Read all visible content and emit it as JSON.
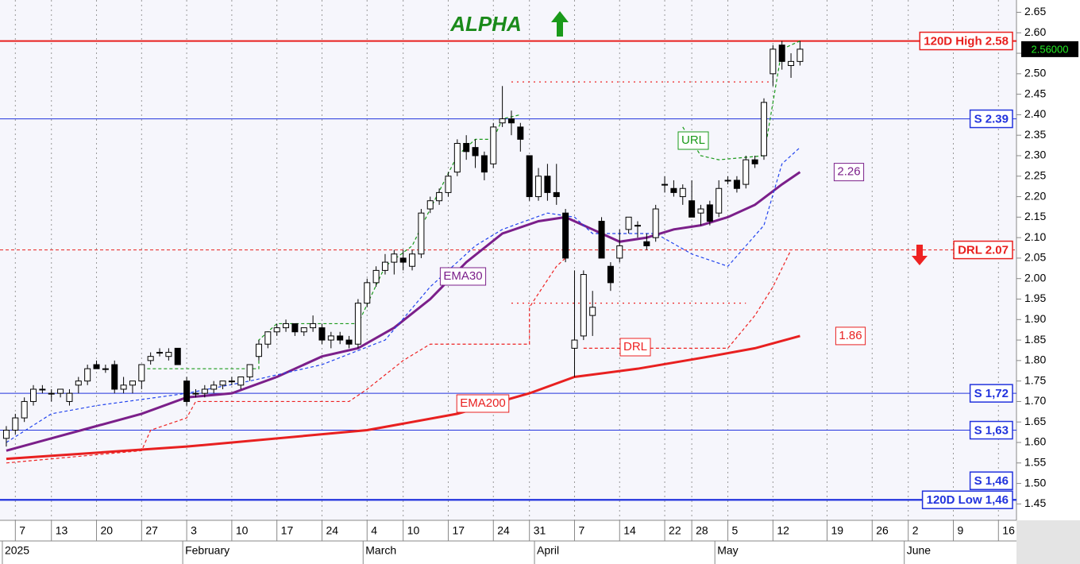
{
  "chart_data": {
    "type": "candlestick",
    "title": "ALPHA",
    "xlim": [
      -0.7,
      112
    ],
    "ylim": [
      1.41,
      2.68
    ],
    "grid": true,
    "xticks": [
      {
        "value": 1,
        "label": "7"
      },
      {
        "value": 5,
        "label": "13"
      },
      {
        "value": 10,
        "label": "20"
      },
      {
        "value": 15,
        "label": "27"
      },
      {
        "value": 20,
        "label": "3"
      },
      {
        "value": 25,
        "label": "10"
      },
      {
        "value": 30,
        "label": "17"
      },
      {
        "value": 35,
        "label": "24"
      },
      {
        "value": 40,
        "label": "4"
      },
      {
        "value": 44,
        "label": "10"
      },
      {
        "value": 49,
        "label": "17"
      },
      {
        "value": 54,
        "label": "24"
      },
      {
        "value": 58,
        "label": "31"
      },
      {
        "value": 63,
        "label": "7"
      },
      {
        "value": 68,
        "label": "14"
      },
      {
        "value": 73,
        "label": "22"
      },
      {
        "value": 76,
        "label": "28"
      },
      {
        "value": 80,
        "label": "5"
      },
      {
        "value": 85,
        "label": "12"
      },
      {
        "value": 91,
        "label": "19"
      },
      {
        "value": 96,
        "label": "26"
      },
      {
        "value": 100,
        "label": "2"
      },
      {
        "value": 105,
        "label": "9"
      },
      {
        "value": 110,
        "label": "16"
      }
    ],
    "month_ticks": [
      {
        "value": 0,
        "label": "2025"
      },
      {
        "value": 20,
        "label": "February"
      },
      {
        "value": 40,
        "label": "March"
      },
      {
        "value": 59,
        "label": "April"
      },
      {
        "value": 79,
        "label": "May"
      },
      {
        "value": 100,
        "label": "June"
      }
    ],
    "yticks": [
      {
        "value": 1.45,
        "label": "1.45"
      },
      {
        "value": 1.5,
        "label": "1.50"
      },
      {
        "value": 1.55,
        "label": "1.55"
      },
      {
        "value": 1.6,
        "label": "1.60"
      },
      {
        "value": 1.65,
        "label": "1.65"
      },
      {
        "value": 1.7,
        "label": "1.70"
      },
      {
        "value": 1.75,
        "label": "1.75"
      },
      {
        "value": 1.8,
        "label": "1.80"
      },
      {
        "value": 1.85,
        "label": "1.85"
      },
      {
        "value": 1.9,
        "label": "1.90"
      },
      {
        "value": 1.95,
        "label": "1.95"
      },
      {
        "value": 2.0,
        "label": "2.00"
      },
      {
        "value": 2.05,
        "label": "2.05"
      },
      {
        "value": 2.1,
        "label": "2.10"
      },
      {
        "value": 2.15,
        "label": "2.15"
      },
      {
        "value": 2.2,
        "label": "2.20"
      },
      {
        "value": 2.25,
        "label": "2.25"
      },
      {
        "value": 2.3,
        "label": "2.30"
      },
      {
        "value": 2.35,
        "label": "2.35"
      },
      {
        "value": 2.4,
        "label": "2.40"
      },
      {
        "value": 2.45,
        "label": "2.45"
      },
      {
        "value": 2.5,
        "label": "2.50"
      },
      {
        "value": 2.55,
        "label": "2.55"
      },
      {
        "value": 2.6,
        "label": "2.60"
      },
      {
        "value": 2.65,
        "label": "2.65"
      }
    ],
    "candles": {
      "open": [
        1.61,
        1.63,
        1.66,
        1.7,
        1.73,
        1.72,
        1.72,
        1.7,
        1.74,
        1.75,
        1.79,
        1.78,
        1.79,
        1.73,
        1.74,
        1.75,
        1.8,
        1.82,
        1.81,
        1.83,
        1.75,
        1.72,
        1.72,
        1.73,
        1.74,
        1.75,
        1.74,
        1.76,
        1.81,
        1.84,
        1.87,
        1.88,
        1.89,
        1.87,
        1.88,
        1.88,
        1.85,
        1.86,
        1.85,
        1.84,
        1.94,
        1.99,
        2.02,
        2.04,
        2.05,
        2.03,
        2.06,
        2.17,
        2.19,
        2.21,
        2.26,
        2.33,
        2.32,
        2.3,
        2.28,
        2.38,
        2.39,
        2.37,
        2.3,
        2.2,
        2.25,
        2.21,
        2.16,
        1.83,
        1.86,
        1.91,
        2.14,
        2.03,
        2.05,
        2.12,
        2.13,
        2.09,
        2.1,
        2.23,
        2.22,
        2.2,
        2.19,
        2.16,
        2.18,
        2.16,
        2.24,
        2.24,
        2.23,
        2.29,
        2.3,
        2.5,
        2.57,
        2.52,
        2.53
      ],
      "high": [
        1.64,
        1.67,
        1.71,
        1.74,
        1.74,
        1.73,
        1.73,
        1.73,
        1.76,
        1.79,
        1.8,
        1.79,
        1.8,
        1.76,
        1.75,
        1.79,
        1.82,
        1.83,
        1.83,
        1.83,
        1.76,
        1.73,
        1.74,
        1.75,
        1.75,
        1.76,
        1.76,
        1.79,
        1.85,
        1.87,
        1.89,
        1.9,
        1.89,
        1.88,
        1.91,
        1.89,
        1.87,
        1.87,
        1.86,
        1.95,
        2.0,
        2.03,
        2.06,
        2.07,
        2.07,
        2.07,
        2.17,
        2.2,
        2.22,
        2.26,
        2.34,
        2.35,
        2.34,
        2.31,
        2.38,
        2.47,
        2.41,
        2.38,
        2.3,
        2.27,
        2.28,
        2.28,
        2.17,
        2.02,
        2.02,
        1.97,
        2.15,
        2.04,
        2.12,
        2.15,
        2.14,
        2.11,
        2.18,
        2.25,
        2.24,
        2.23,
        2.24,
        2.18,
        2.19,
        2.24,
        2.25,
        2.25,
        2.3,
        2.3,
        2.44,
        2.57,
        2.58,
        2.55,
        2.58
      ],
      "low": [
        1.59,
        1.62,
        1.65,
        1.69,
        1.72,
        1.7,
        1.71,
        1.69,
        1.72,
        1.74,
        1.78,
        1.77,
        1.72,
        1.72,
        1.72,
        1.73,
        1.79,
        1.81,
        1.8,
        1.79,
        1.69,
        1.71,
        1.71,
        1.72,
        1.73,
        1.74,
        1.73,
        1.75,
        1.8,
        1.83,
        1.86,
        1.87,
        1.86,
        1.86,
        1.87,
        1.84,
        1.83,
        1.84,
        1.83,
        1.83,
        1.93,
        1.98,
        2.01,
        2.01,
        2.02,
        2.02,
        2.05,
        2.16,
        2.18,
        2.2,
        2.25,
        2.29,
        2.27,
        2.24,
        2.27,
        2.37,
        2.35,
        2.31,
        2.19,
        2.19,
        2.19,
        2.18,
        2.04,
        1.76,
        1.85,
        1.86,
        2.05,
        1.97,
        2.04,
        2.11,
        2.1,
        2.07,
        2.09,
        2.21,
        2.2,
        2.18,
        2.15,
        2.13,
        2.13,
        2.15,
        2.23,
        2.21,
        2.22,
        2.27,
        2.29,
        2.47,
        2.51,
        2.49,
        2.52
      ],
      "close": [
        1.63,
        1.66,
        1.7,
        1.73,
        1.73,
        1.72,
        1.73,
        1.72,
        1.75,
        1.78,
        1.78,
        1.78,
        1.73,
        1.74,
        1.75,
        1.79,
        1.81,
        1.82,
        1.82,
        1.79,
        1.7,
        1.72,
        1.73,
        1.74,
        1.75,
        1.75,
        1.76,
        1.79,
        1.84,
        1.87,
        1.88,
        1.89,
        1.87,
        1.88,
        1.89,
        1.85,
        1.86,
        1.85,
        1.84,
        1.94,
        1.99,
        2.02,
        2.04,
        2.06,
        2.04,
        2.06,
        2.16,
        2.19,
        2.21,
        2.25,
        2.33,
        2.31,
        2.3,
        2.26,
        2.37,
        2.39,
        2.38,
        2.34,
        2.2,
        2.25,
        2.21,
        2.2,
        2.05,
        1.85,
        2.01,
        1.93,
        2.05,
        1.99,
        2.08,
        2.15,
        2.13,
        2.08,
        2.17,
        2.23,
        2.21,
        2.22,
        2.15,
        2.17,
        2.14,
        2.22,
        2.24,
        2.22,
        2.29,
        2.28,
        2.43,
        2.56,
        2.53,
        2.53,
        2.56
      ]
    },
    "series": [
      {
        "name": "EMA30",
        "color": "#7b1f8a",
        "end_label": 2.26,
        "x": [
          0,
          5,
          10,
          15,
          20,
          25,
          30,
          35,
          39,
          43,
          47,
          51,
          55,
          59,
          62,
          65,
          68,
          71,
          74,
          77,
          80,
          83,
          86,
          88
        ],
        "values": [
          1.58,
          1.61,
          1.64,
          1.67,
          1.71,
          1.72,
          1.76,
          1.81,
          1.83,
          1.88,
          1.95,
          2.04,
          2.11,
          2.14,
          2.15,
          2.12,
          2.09,
          2.1,
          2.12,
          2.13,
          2.15,
          2.18,
          2.23,
          2.26
        ]
      },
      {
        "name": "EMA200",
        "color": "#e82020",
        "end_label": 1.86,
        "x": [
          0,
          20,
          40,
          50,
          58,
          63,
          70,
          78,
          83,
          88
        ],
        "values": [
          1.56,
          1.59,
          1.63,
          1.67,
          1.72,
          1.76,
          1.78,
          1.81,
          1.83,
          1.86
        ]
      },
      {
        "color": "#2244ee",
        "x": [
          0,
          5,
          10,
          20,
          27,
          35,
          42,
          47,
          52,
          55,
          60,
          63,
          65,
          72,
          76,
          80,
          84,
          86,
          88
        ],
        "values": [
          1.6,
          1.67,
          1.69,
          1.72,
          1.75,
          1.79,
          1.85,
          1.98,
          2.08,
          2.12,
          2.16,
          2.15,
          2.11,
          2.11,
          2.06,
          2.03,
          2.13,
          2.28,
          2.32
        ]
      },
      {
        "name": "URL",
        "color": "#1a9a1a",
        "x": [
          15,
          28,
          28,
          30,
          39,
          42,
          45,
          47,
          50,
          52,
          54,
          55,
          57,
          66,
          75,
          77,
          79,
          84,
          85,
          86,
          88
        ],
        "values": [
          1.78,
          1.78,
          1.85,
          1.89,
          1.89,
          2.03,
          2.08,
          2.17,
          2.3,
          2.34,
          2.34,
          2.39,
          2.4,
          null,
          2.37,
          2.3,
          2.29,
          2.3,
          2.43,
          2.56,
          2.58
        ]
      },
      {
        "name": "DRL",
        "color": "#ee2222",
        "x": [
          0,
          15,
          16,
          20,
          21,
          38,
          40,
          44,
          47,
          58,
          58,
          61,
          62,
          63,
          64,
          80,
          83,
          85,
          87
        ],
        "values": [
          1.55,
          1.58,
          1.63,
          1.66,
          1.7,
          1.7,
          1.73,
          1.8,
          1.84,
          1.84,
          1.93,
          2.03,
          2.05,
          null,
          1.83,
          1.83,
          1.91,
          1.98,
          2.07
        ]
      },
      {
        "color": "#ee2222",
        "x": [
          56,
          85
        ],
        "values": [
          2.48,
          2.48
        ]
      },
      {
        "color": "#ee2222",
        "x": [
          56,
          82
        ],
        "values": [
          1.94,
          1.94
        ]
      }
    ],
    "levels": [
      {
        "label": "120D High 2.58",
        "value": 2.58,
        "color": "#e8201e",
        "width": 2
      },
      {
        "label": "S 2.39",
        "value": 2.39,
        "color": "#2233dd",
        "width": 1
      },
      {
        "label": "DRL 2.07",
        "value": 2.07,
        "color": "#e8201e",
        "width": 1,
        "dash": true
      },
      {
        "label": "S 1,72",
        "value": 1.72,
        "color": "#2233dd",
        "width": 1
      },
      {
        "label": "S 1,63",
        "value": 1.63,
        "color": "#2233dd",
        "width": 1
      },
      {
        "label": "S 1,46",
        "value": 1.46,
        "color": "#2233dd",
        "width": 2
      },
      {
        "label": "120D Low 1,46",
        "value": 1.46,
        "color": "#2233dd",
        "width": 2
      }
    ],
    "price": {
      "value": 2.56,
      "label": "2.56000"
    }
  }
}
